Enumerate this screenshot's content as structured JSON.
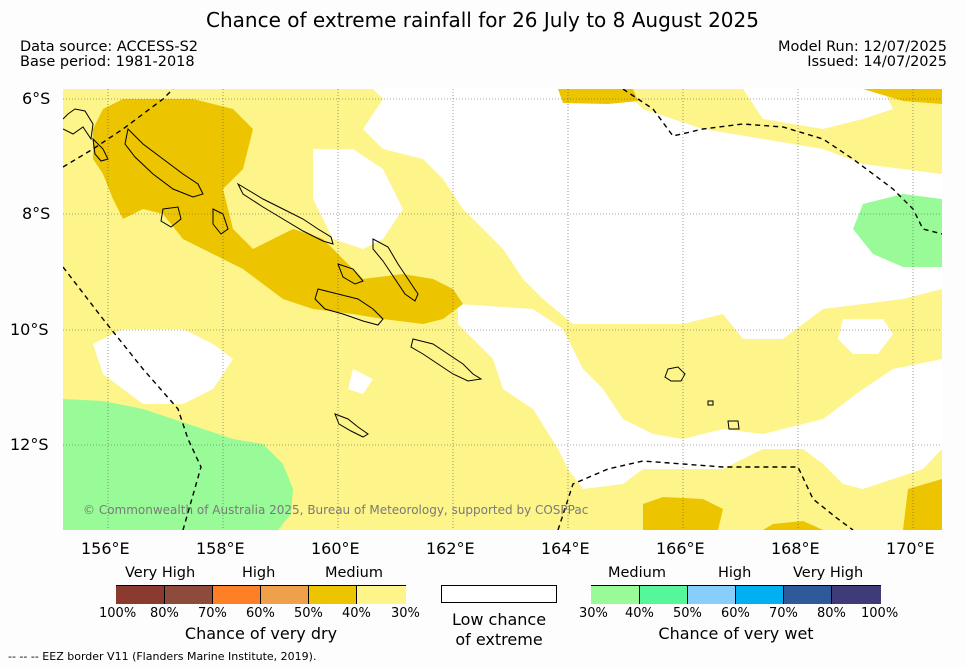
{
  "title": "Chance of extreme rainfall for 26 July to 8 August 2025",
  "data_source": "Data source: ACCESS-S2",
  "base_period": "Base period: 1981-2018",
  "model_run": "Model Run: 12/07/2025",
  "issued": "Issued: 14/07/2025",
  "credit": "© Commonwealth of Australia 2025, Bureau of Meteorology, supported by COSPPac",
  "footnote": "--  --  -- EEZ border V11 (Flanders Marine Institute, 2019).",
  "lat_labels": [
    "6°S",
    "8°S",
    "10°S",
    "12°S"
  ],
  "lon_labels": [
    "156°E",
    "158°E",
    "160°E",
    "162°E",
    "164°E",
    "166°E",
    "168°E",
    "170°E"
  ],
  "colors": {
    "dry_very_high_1": "#8b3a30",
    "dry_very_high_2": "#8e4a3a",
    "dry_high_1": "#ff7f27",
    "dry_high_2": "#f0a04b",
    "dry_medium_1": "#ecc400",
    "dry_medium_2": "#fdf48a",
    "low": "#ffffff",
    "wet_medium_1": "#98fb98",
    "wet_medium_2": "#55f79a",
    "wet_high_1": "#87cefa",
    "wet_high_2": "#00b0f0",
    "wet_very_high_1": "#2f5a9a",
    "wet_very_high_2": "#3f3a78"
  },
  "dry_legend": {
    "levels": [
      "Very High",
      "High",
      "Medium"
    ],
    "ticks": [
      "100%",
      "80%",
      "70%",
      "60%",
      "50%",
      "40%",
      "30%"
    ],
    "title": "Chance of very dry"
  },
  "low_legend": {
    "line1": "Low chance",
    "line2": "of extreme"
  },
  "wet_legend": {
    "levels": [
      "Medium",
      "High",
      "Very High"
    ],
    "ticks": [
      "30%",
      "40%",
      "50%",
      "60%",
      "70%",
      "80%",
      "100%"
    ],
    "title": "Chance of very wet"
  }
}
